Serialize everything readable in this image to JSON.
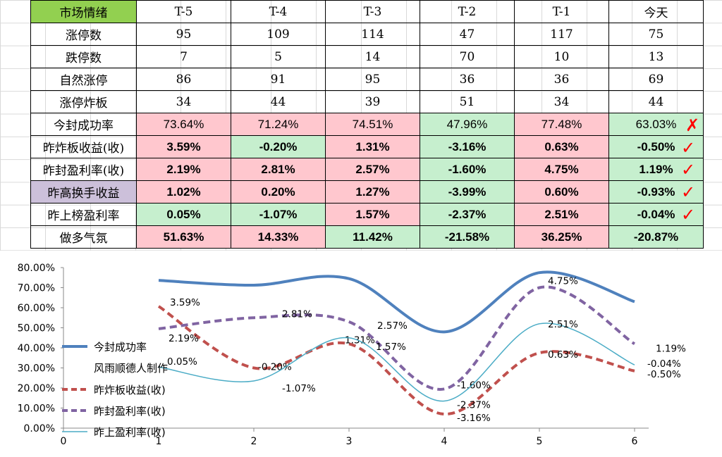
{
  "table": {
    "header": [
      "市场情绪",
      "T-5",
      "T-4",
      "T-3",
      "T-2",
      "T-1",
      "今天"
    ],
    "rows": [
      {
        "label": "涨停数",
        "values": [
          "95",
          "109",
          "114",
          "47",
          "117",
          "75"
        ]
      },
      {
        "label": "跌停数",
        "values": [
          "7",
          "5",
          "14",
          "70",
          "10",
          "13"
        ]
      },
      {
        "label": "自然涨停",
        "values": [
          "86",
          "91",
          "95",
          "36",
          "36",
          "69"
        ]
      },
      {
        "label": "涨停炸板",
        "values": [
          "34",
          "44",
          "39",
          "51",
          "34",
          "44"
        ]
      },
      {
        "label": "今封成功率",
        "values": [
          "73.64%",
          "71.24%",
          "74.51%",
          "47.96%",
          "77.48%",
          "63.03%"
        ]
      },
      {
        "label": "昨炸板收益(收)",
        "values": [
          "3.59%",
          "-0.20%",
          "1.31%",
          "-3.16%",
          "0.63%",
          "-0.50%"
        ]
      },
      {
        "label": "昨封盈利率(收)",
        "values": [
          "2.19%",
          "2.81%",
          "2.57%",
          "-1.60%",
          "4.75%",
          "1.19%"
        ]
      },
      {
        "label": "昨高换手收益",
        "values": [
          "1.02%",
          "0.20%",
          "1.27%",
          "-3.99%",
          "0.60%",
          "-0.93%"
        ]
      },
      {
        "label": "昨上榜盈利率",
        "values": [
          "0.05%",
          "-1.07%",
          "1.57%",
          "-2.37%",
          "2.51%",
          "-0.04%"
        ]
      },
      {
        "label": "做多气氛",
        "values": [
          "51.63%",
          "14.33%",
          "11.42%",
          "-21.58%",
          "36.25%",
          "-20.87%"
        ]
      }
    ],
    "marks": {
      "cross": "✗",
      "check": "✓"
    }
  },
  "chart_data": {
    "type": "line",
    "x": [
      1,
      2,
      3,
      4,
      5,
      6
    ],
    "xticks": [
      "0",
      "1",
      "2",
      "3",
      "4",
      "5",
      "6"
    ],
    "yticks": [
      "0.00%",
      "10.00%",
      "20.00%",
      "30.00%",
      "40.00%",
      "50.00%",
      "60.00%",
      "70.00%",
      "80.00%"
    ],
    "ylim": [
      0,
      80
    ],
    "xlim": [
      0,
      6
    ],
    "legend_note": "风雨顺德人制作",
    "series": [
      {
        "name": "今封成功率",
        "values": [
          73.64,
          71.24,
          74.51,
          47.96,
          77.48,
          63.03
        ],
        "color": "#4f81bd",
        "labels": []
      },
      {
        "name": "昨炸板收益(收)",
        "values": [
          60.7,
          30.0,
          42.0,
          7.0,
          37.5,
          28.5
        ],
        "color": "#c0504d",
        "labels": [
          "3.59%",
          "-0.20%",
          "1.31%",
          "-3.16%",
          "0.63%",
          "-0.50%"
        ]
      },
      {
        "name": "昨封盈利率(收)",
        "values": [
          49.5,
          55.0,
          53.0,
          19.5,
          70.0,
          42.0
        ],
        "color": "#8064a2",
        "labels": [
          "2.19%",
          "2.81%",
          "2.57%",
          "-1.60%",
          "4.75%",
          "1.19%"
        ]
      },
      {
        "name": "昨上盈利率(收)",
        "values": [
          30.5,
          23.5,
          45.0,
          13.5,
          52.0,
          31.5
        ],
        "color": "#4bacc6",
        "labels": [
          "0.05%",
          "-1.07%",
          "1.57%",
          "-2.37%",
          "2.51%",
          "-0.04%"
        ]
      }
    ]
  }
}
